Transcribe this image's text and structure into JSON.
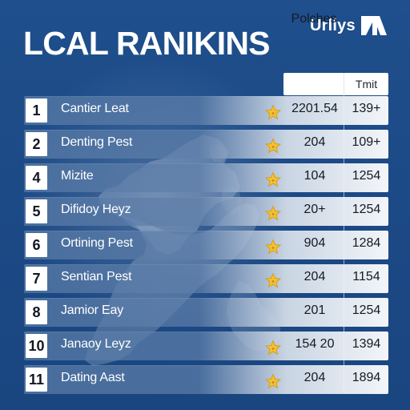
{
  "brand": {
    "text": "Urllys"
  },
  "page": {
    "title": "LCAL RANIKINS"
  },
  "table": {
    "headers": {
      "points": "Polches",
      "limit": "Tmit"
    },
    "rows": [
      {
        "rank": "1",
        "name": "Cantier Leat",
        "points": "2201.54",
        "limit": "139+",
        "star": true
      },
      {
        "rank": "2",
        "name": "Denting Pest",
        "points": "204",
        "limit": "109+",
        "star": true
      },
      {
        "rank": "4",
        "name": "Mizite",
        "points": "104",
        "limit": "1254",
        "star": true
      },
      {
        "rank": "5",
        "name": "Difidoy Heyz",
        "points": "20+",
        "limit": "1254",
        "star": true
      },
      {
        "rank": "6",
        "name": "Ortining Pest",
        "points": "904",
        "limit": "1284",
        "star": true
      },
      {
        "rank": "7",
        "name": "Sentian Pest",
        "points": "204",
        "limit": "1154",
        "star": true
      },
      {
        "rank": "8",
        "name": "Jamior Eay",
        "points": "201",
        "limit": "1254",
        "star": false
      },
      {
        "rank": "10",
        "name": "Janaoy Leyz",
        "points": "154 20",
        "limit": "1394",
        "star": true
      },
      {
        "rank": "11",
        "name": "Dating Aast",
        "points": "204",
        "limit": "1894",
        "star": true
      }
    ]
  },
  "colors": {
    "background": "#1f4f8c",
    "text_light": "#ffffff",
    "text_dark": "#131a22",
    "star": "#f2c230"
  },
  "icons": {
    "brand": "brand-mark-icon",
    "row_star": "star-icon"
  }
}
